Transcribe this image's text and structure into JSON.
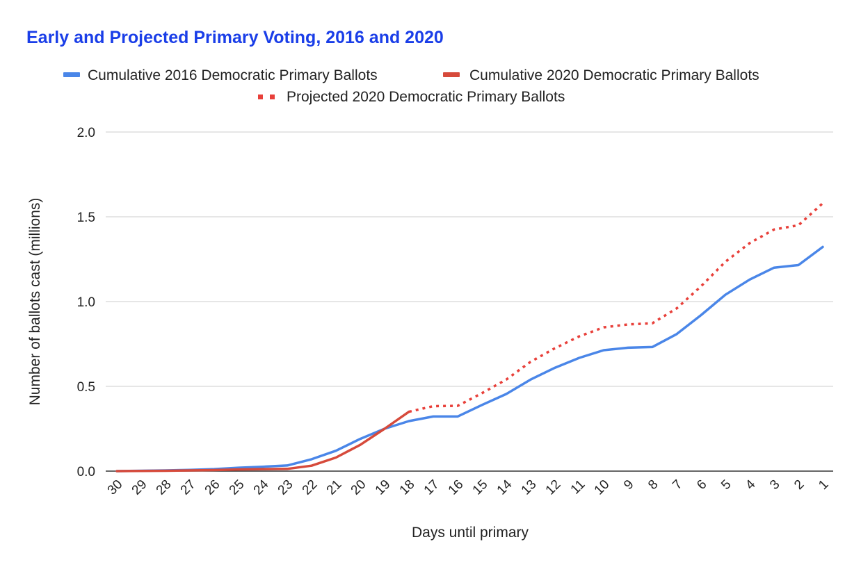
{
  "chart_data": {
    "type": "line",
    "title": "Early and Projected Primary Voting, 2016 and 2020",
    "title_color": "#1a3ee8",
    "xlabel": "Days until primary",
    "ylabel": "Number of ballots cast (millions)",
    "ylim": [
      0,
      2.0
    ],
    "yticks": [
      "0.0",
      "0.5",
      "1.0",
      "1.5",
      "2.0"
    ],
    "grid": true,
    "legend_position": "top",
    "categories": [
      "30",
      "29",
      "28",
      "27",
      "26",
      "25",
      "24",
      "23",
      "22",
      "21",
      "20",
      "19",
      "18",
      "17",
      "16",
      "15",
      "14",
      "13",
      "12",
      "11",
      "10",
      "9",
      "8",
      "7",
      "6",
      "5",
      "4",
      "3",
      "2",
      "1"
    ],
    "series": [
      {
        "name": "Cumulative 2016 Democratic Primary Ballots",
        "color": "#4a86e8",
        "style": "solid",
        "values": [
          0.0,
          0.002,
          0.004,
          0.007,
          0.012,
          0.02,
          0.026,
          0.033,
          0.07,
          0.12,
          0.19,
          0.25,
          0.295,
          0.322,
          0.322,
          0.39,
          0.455,
          0.54,
          0.61,
          0.668,
          0.713,
          0.728,
          0.732,
          0.808,
          0.92,
          1.04,
          1.13,
          1.2,
          1.215,
          1.322
        ]
      },
      {
        "name": "Cumulative 2020 Democratic Primary Ballots",
        "color": "#d64a3b",
        "style": "solid",
        "values": [
          0.0,
          0.001,
          0.002,
          0.004,
          0.006,
          0.01,
          0.012,
          0.013,
          0.032,
          0.08,
          0.155,
          0.25,
          0.35,
          null,
          null,
          null,
          null,
          null,
          null,
          null,
          null,
          null,
          null,
          null,
          null,
          null,
          null,
          null,
          null,
          null
        ]
      },
      {
        "name": "Projected 2020 Democratic Primary Ballots",
        "color": "#e8403a",
        "style": "dotted",
        "values": [
          null,
          null,
          null,
          null,
          null,
          null,
          null,
          null,
          null,
          null,
          null,
          null,
          0.35,
          0.383,
          0.385,
          0.46,
          0.54,
          0.645,
          0.725,
          0.795,
          0.848,
          0.865,
          0.872,
          0.96,
          1.09,
          1.235,
          1.345,
          1.425,
          1.45,
          1.58
        ]
      }
    ]
  }
}
